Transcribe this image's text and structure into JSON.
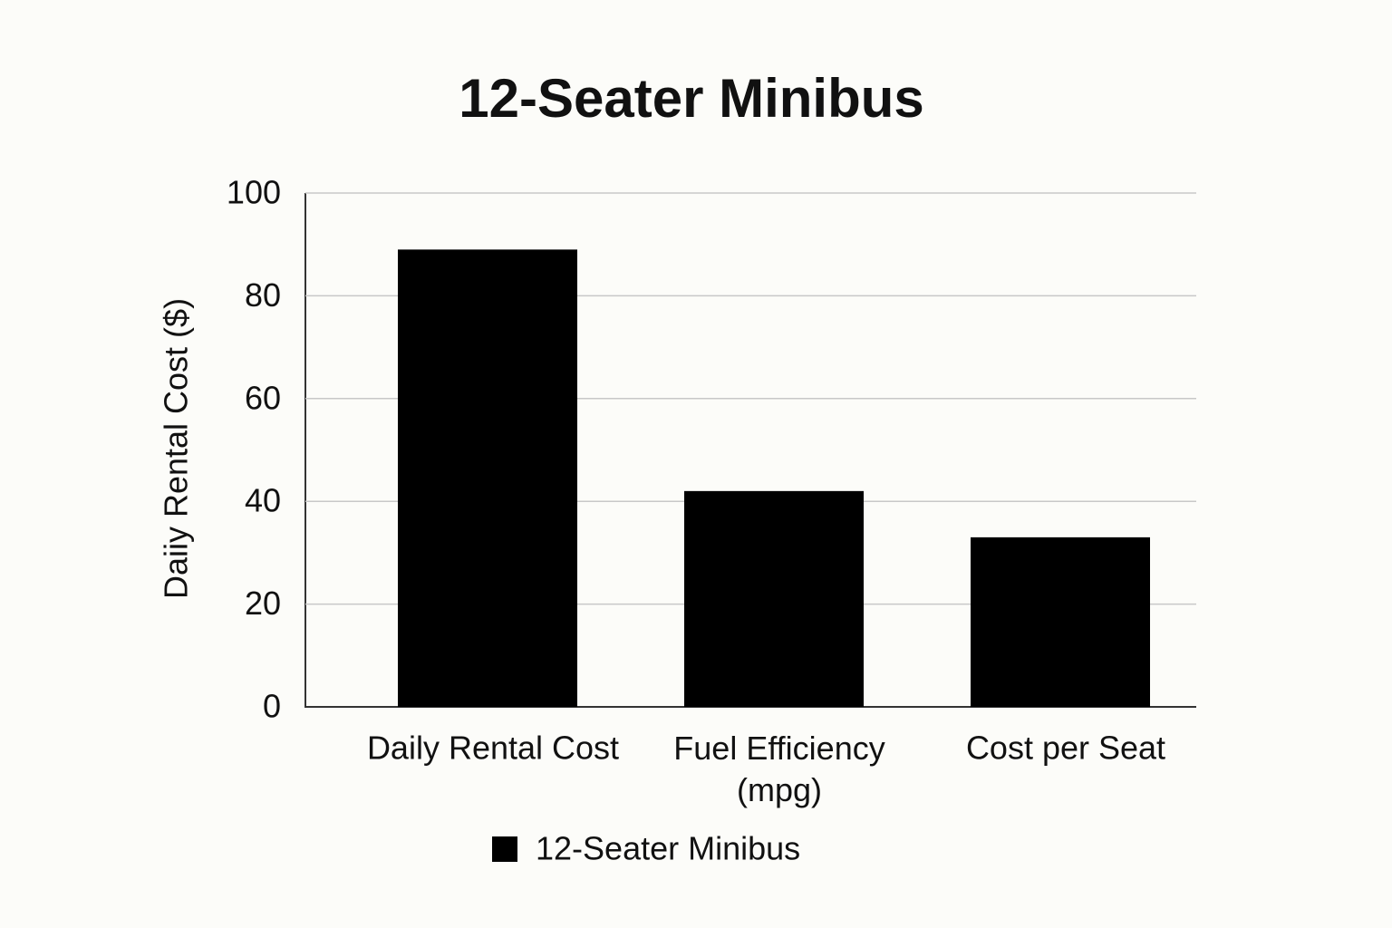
{
  "chart_data": {
    "type": "bar",
    "title": "12-Seater Minibus",
    "y_label": "Daiiy Rental Cost ($)",
    "categories": [
      "Daily Rental Cost",
      "Fuel Efficiency (mpg)",
      "Cost per Seat"
    ],
    "series": [
      {
        "name": "12-Seater Minibus",
        "color": "#000000",
        "values": [
          89,
          42,
          33
        ]
      }
    ],
    "ylim": [
      0,
      100
    ],
    "yticks": [
      0,
      20,
      40,
      60,
      80,
      100
    ],
    "grid": true
  }
}
